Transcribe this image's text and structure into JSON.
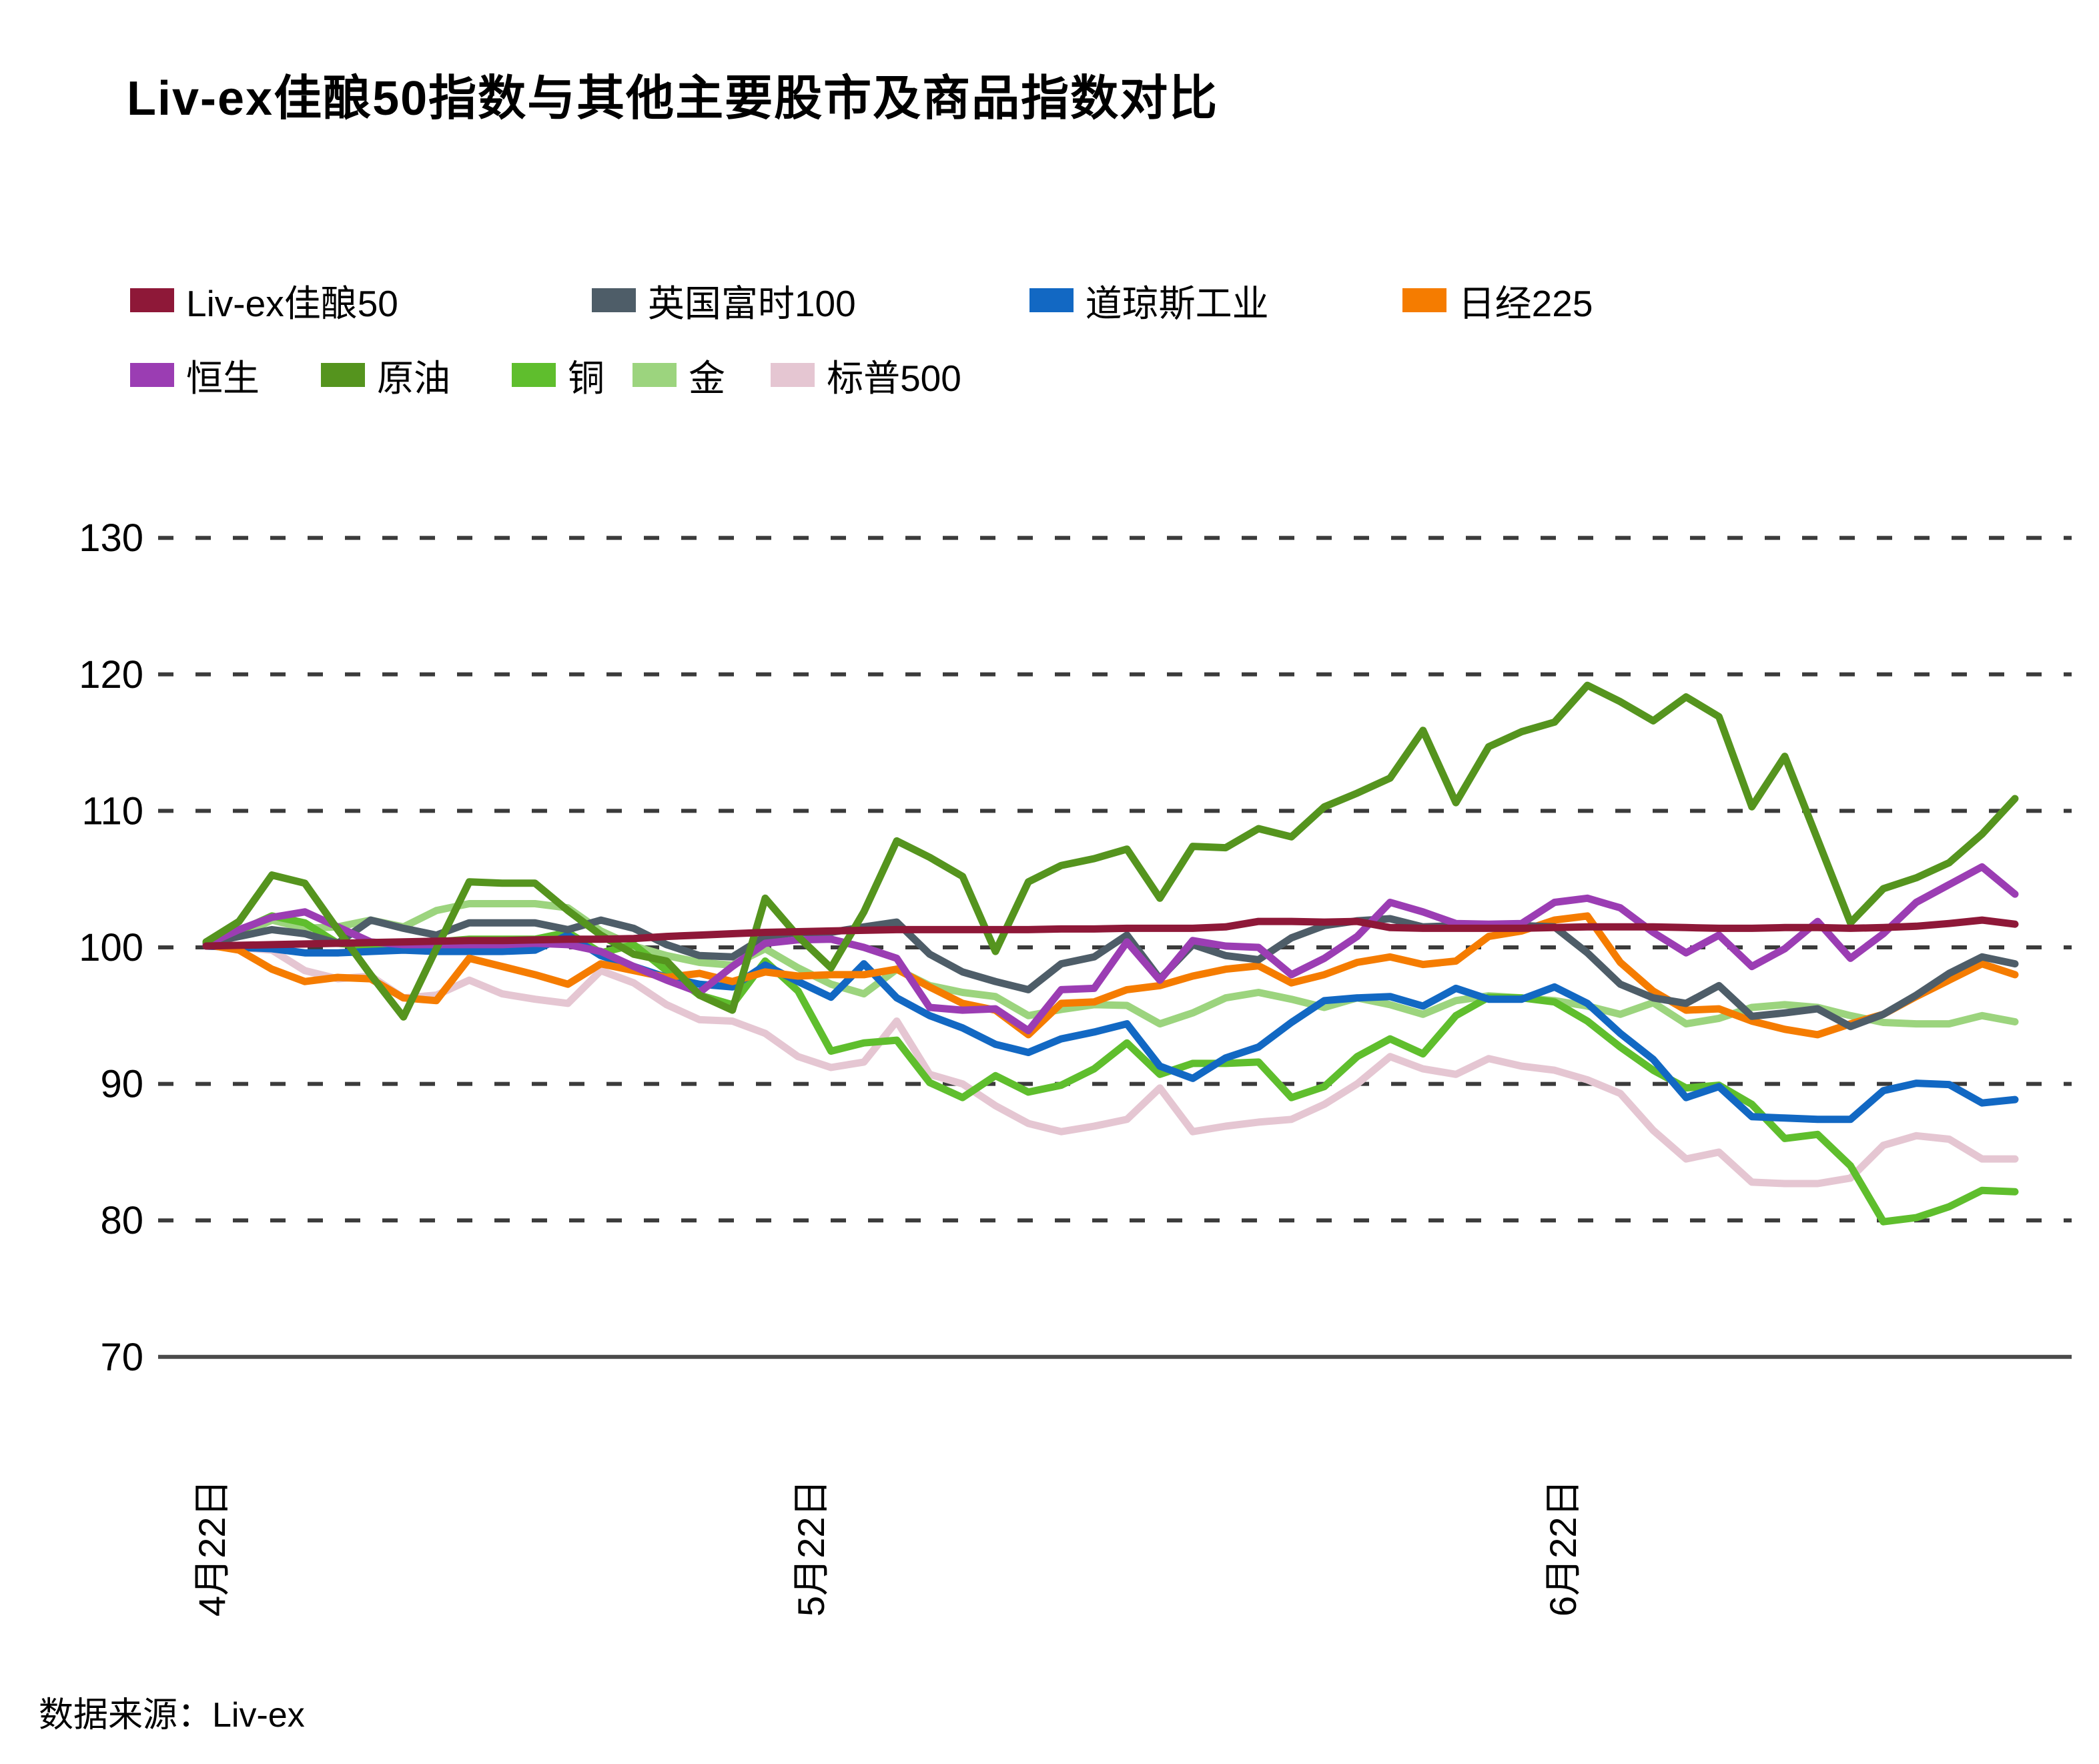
{
  "title": "Liv-ex佳酿50指数与其他主要股市及商品指数对比",
  "source": "数据来源：Liv-ex",
  "chart_data": {
    "type": "line",
    "title": "Liv-ex佳酿50指数与其他主要股市及商品指数对比",
    "ylim": [
      70,
      130
    ],
    "yticks": [
      70,
      80,
      90,
      100,
      110,
      120,
      130
    ],
    "grid": "horizontal-dashed",
    "legend_position": "top-left",
    "x_tick_labels": [
      {
        "label": "4月22日",
        "x": 315
      },
      {
        "label": "5月22日",
        "x": 1213
      },
      {
        "label": "6月22日",
        "x": 2340
      }
    ],
    "series": [
      {
        "name": "Liv-ex佳酿50",
        "color": "#8E1838",
        "values": [
          100.1,
          100.15,
          100.2,
          100.25,
          100.3,
          100.35,
          100.4,
          100.45,
          100.5,
          100.5,
          100.55,
          100.6,
          100.6,
          100.65,
          100.8,
          100.9,
          101.0,
          101.1,
          101.15,
          101.2,
          101.25,
          101.3,
          101.3,
          101.3,
          101.3,
          101.3,
          101.35,
          101.35,
          101.4,
          101.4,
          101.4,
          101.5,
          101.9,
          101.9,
          101.85,
          101.9,
          101.45,
          101.4,
          101.4,
          101.4,
          101.4,
          101.45,
          101.5,
          101.5,
          101.5,
          101.45,
          101.4,
          101.4,
          101.45,
          101.45,
          101.4,
          101.45,
          101.55,
          101.75,
          102.0,
          101.7
        ]
      },
      {
        "name": "英国富时100",
        "color": "#4E5D68",
        "values": [
          100.3,
          100.8,
          101.3,
          101.0,
          100.3,
          102.0,
          101.4,
          100.9,
          101.8,
          101.8,
          101.8,
          101.3,
          102.0,
          101.4,
          100.2,
          99.4,
          99.3,
          100.8,
          101.1,
          101.1,
          101.5,
          101.85,
          99.5,
          98.2,
          97.5,
          96.9,
          98.8,
          99.3,
          100.9,
          97.7,
          100.2,
          99.4,
          99.1,
          100.7,
          101.6,
          101.95,
          102.1,
          101.5,
          101.6,
          101.6,
          101.6,
          101.5,
          99.6,
          97.3,
          96.3,
          95.9,
          97.2,
          94.95,
          95.2,
          95.5,
          94.2,
          95.1,
          96.5,
          98.1,
          99.3,
          98.8
        ]
      },
      {
        "name": "道琼斯工业",
        "color": "#1268C3",
        "values": [
          100.1,
          100.0,
          99.9,
          99.6,
          99.6,
          99.7,
          99.8,
          99.7,
          99.7,
          99.7,
          99.8,
          100.9,
          99.4,
          98.6,
          97.8,
          97.3,
          97.1,
          98.7,
          97.5,
          96.35,
          98.8,
          96.3,
          95.0,
          94.1,
          92.9,
          92.3,
          93.3,
          93.8,
          94.4,
          91.3,
          90.4,
          91.9,
          92.7,
          94.5,
          96.1,
          96.3,
          96.4,
          95.7,
          97.0,
          96.2,
          96.2,
          97.1,
          95.9,
          93.7,
          91.8,
          89.0,
          89.8,
          87.6,
          87.5,
          87.4,
          87.4,
          89.5,
          90.05,
          89.95,
          88.6,
          88.85
        ]
      },
      {
        "name": "日经225",
        "color": "#F57C00",
        "values": [
          100.2,
          99.8,
          98.4,
          97.5,
          97.8,
          97.7,
          96.3,
          96.1,
          99.2,
          98.6,
          98.0,
          97.3,
          98.8,
          98.3,
          97.8,
          98.1,
          97.5,
          98.2,
          97.9,
          98.0,
          98.0,
          98.4,
          97.1,
          95.9,
          95.4,
          93.6,
          95.9,
          96.0,
          96.9,
          97.2,
          97.9,
          98.4,
          98.65,
          97.4,
          98.0,
          98.9,
          99.3,
          98.75,
          99.0,
          100.8,
          101.2,
          102.0,
          102.3,
          98.9,
          96.8,
          95.4,
          95.5,
          94.6,
          94.0,
          93.6,
          94.4,
          95.1,
          96.4,
          97.6,
          98.8,
          98.0
        ]
      },
      {
        "name": "恒生",
        "color": "#9B3DB3",
        "values": [
          100.2,
          101.3,
          102.2,
          102.6,
          101.5,
          100.4,
          100.2,
          100.2,
          100.2,
          100.2,
          100.3,
          100.2,
          99.7,
          98.6,
          97.6,
          96.7,
          98.6,
          100.3,
          100.55,
          100.6,
          100.0,
          99.2,
          95.6,
          95.4,
          95.5,
          93.9,
          96.9,
          97.0,
          100.4,
          97.6,
          100.5,
          100.1,
          100.0,
          98.0,
          99.2,
          100.8,
          103.3,
          102.6,
          101.75,
          101.7,
          101.75,
          103.3,
          103.6,
          102.9,
          101.1,
          99.6,
          100.9,
          98.6,
          99.9,
          101.9,
          99.2,
          101.0,
          103.3,
          104.6,
          105.9,
          103.9
        ]
      },
      {
        "name": "原油",
        "color": "#55941E",
        "values": [
          100.4,
          101.9,
          105.3,
          104.7,
          101.3,
          98.0,
          94.9,
          99.9,
          104.8,
          104.7,
          104.7,
          102.7,
          100.9,
          99.5,
          99.0,
          96.5,
          95.4,
          103.6,
          100.8,
          98.5,
          102.6,
          107.8,
          106.6,
          105.2,
          99.7,
          104.8,
          106.0,
          106.5,
          107.2,
          103.6,
          107.4,
          107.3,
          108.7,
          108.1,
          110.3,
          111.3,
          112.4,
          115.9,
          110.6,
          114.7,
          115.8,
          116.5,
          119.2,
          118.0,
          116.6,
          118.35,
          116.9,
          110.3,
          114.0,
          107.9,
          101.8,
          104.3,
          105.1,
          106.2,
          108.3,
          110.9
        ]
      },
      {
        "name": "铜",
        "color": "#5FBE2D",
        "values": [
          100.4,
          101.2,
          102.3,
          101.8,
          100.3,
          100.1,
          100.3,
          100.4,
          100.6,
          100.6,
          100.6,
          101.1,
          99.6,
          100.2,
          98.3,
          96.5,
          95.8,
          99.0,
          96.8,
          92.4,
          93.0,
          93.2,
          90.1,
          89.0,
          90.6,
          89.4,
          89.9,
          91.1,
          93.0,
          90.7,
          91.5,
          91.5,
          91.6,
          89.0,
          89.8,
          92.0,
          93.3,
          92.2,
          95.0,
          96.35,
          96.3,
          96.0,
          94.6,
          92.7,
          91.0,
          89.7,
          89.9,
          88.5,
          86.0,
          86.3,
          84.0,
          79.9,
          80.2,
          81.0,
          82.2,
          82.1
        ]
      },
      {
        "name": "金",
        "color": "#9CD47E",
        "values": [
          100.3,
          100.9,
          102.0,
          101.4,
          101.5,
          102.0,
          101.5,
          102.7,
          103.2,
          103.2,
          103.2,
          102.9,
          101.2,
          100.1,
          99.4,
          98.9,
          98.7,
          99.9,
          98.5,
          97.3,
          96.6,
          98.4,
          97.2,
          96.7,
          96.4,
          95.0,
          95.45,
          95.8,
          95.75,
          94.4,
          95.2,
          96.3,
          96.7,
          96.2,
          95.6,
          96.3,
          95.8,
          95.1,
          96.1,
          96.45,
          96.3,
          96.1,
          95.7,
          95.1,
          95.95,
          94.4,
          94.8,
          95.6,
          95.8,
          95.6,
          95.0,
          94.5,
          94.4,
          94.4,
          95.0,
          94.55
        ]
      },
      {
        "name": "标普500",
        "color": "#E5C6D2",
        "values": [
          100.1,
          100.0,
          99.8,
          98.3,
          97.7,
          97.9,
          96.3,
          96.5,
          97.6,
          96.6,
          96.2,
          95.9,
          98.3,
          97.4,
          95.8,
          94.7,
          94.6,
          93.7,
          92.0,
          91.2,
          91.6,
          94.6,
          90.7,
          90.0,
          88.4,
          87.1,
          86.5,
          86.9,
          87.4,
          89.7,
          86.5,
          86.9,
          87.2,
          87.4,
          88.5,
          90.0,
          92.0,
          91.1,
          90.7,
          91.85,
          91.3,
          91.0,
          90.3,
          89.3,
          86.6,
          84.5,
          85.0,
          82.8,
          82.7,
          82.7,
          83.1,
          85.5,
          86.2,
          85.95,
          84.5,
          84.5
        ]
      }
    ]
  }
}
